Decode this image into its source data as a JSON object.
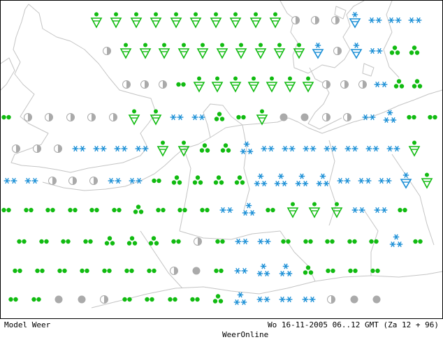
{
  "colors": {
    "coast": "#c4c4c4",
    "rain": "#11bb11",
    "snow": "#1a8fd6",
    "cloud": "#aaaaaa",
    "frame": "#000000"
  },
  "footer": {
    "model_label": "Model Weer",
    "timestamp": "Wo 16-11-2005 06..12 GMT (Za 12 + 96)",
    "brand": "WeerOnline"
  },
  "legend_types": {
    "dots2": "rain-dots-icon",
    "dots3": "rain-dots3-icon",
    "shower": "rain-shower-icon",
    "showersnow": "snow-shower-icon",
    "snow2": "snow-stars-icon",
    "snow3": "snow-stars3-icon",
    "halfcloud": "half-cloud-icon",
    "fog": "overcast-dot-icon"
  },
  "rows": [
    [
      "cloud",
      "shower",
      "shower",
      "shower",
      "shower",
      "shower",
      "shower",
      "shower",
      "shower",
      "shower",
      "shower",
      "halfcloud",
      "halfcloud",
      "halfcloud",
      "showersnow",
      "snow2",
      "snow2",
      "snow2"
    ],
    [
      "cloud",
      "halfcloud",
      "shower",
      "shower",
      "shower",
      "shower",
      "shower",
      "shower",
      "shower",
      "shower",
      "shower",
      "shower",
      "showersnow",
      "halfcloud",
      "showersnow",
      "snow2",
      "dots3",
      "dots3",
      "dots3"
    ],
    [
      "halfcloud",
      "halfcloud",
      "halfcloud",
      "dots2",
      "shower",
      "shower",
      "shower",
      "shower",
      "shower",
      "shower",
      "shower",
      "halfcloud",
      "halfcloud",
      "halfcloud",
      "snow2",
      "dots3",
      "dots3"
    ],
    [
      "dots2",
      "halfcloud",
      "halfcloud",
      "halfcloud",
      "halfcloud",
      "halfcloud",
      "shower",
      "shower",
      "snow2",
      "snow2",
      "dots3",
      "dots2",
      "shower",
      "fog",
      "fog",
      "halfcloud",
      "halfcloud",
      "snow2",
      "snow3",
      "dots2",
      "dots2"
    ],
    [
      "halfcloud",
      "halfcloud",
      "halfcloud",
      "snow2",
      "snow2",
      "snow2",
      "snow2",
      "shower",
      "shower",
      "dots3",
      "dots3",
      "snow3",
      "snow2",
      "snow2",
      "snow2",
      "snow2",
      "snow2",
      "snow2",
      "snow2",
      "shower"
    ],
    [
      "snow2",
      "snow2",
      "halfcloud",
      "halfcloud",
      "halfcloud",
      "snow2",
      "snow2",
      "dots2",
      "dots3",
      "dots3",
      "dots3",
      "dots3",
      "snow3",
      "snow3",
      "snow3",
      "snow3",
      "snow2",
      "snow2",
      "snow2",
      "showersnow",
      "shower"
    ],
    [
      "dots2",
      "dots2",
      "dots2",
      "dots2",
      "dots2",
      "dots2",
      "dots3",
      "dots2",
      "dots2",
      "dots2",
      "snow2",
      "snow3",
      "dots2",
      "shower",
      "shower",
      "shower",
      "snow2",
      "snow2",
      "dots2"
    ],
    [
      "dots2",
      "dots2",
      "dots2",
      "dots2",
      "dots3",
      "dots3",
      "dots3",
      "dots2",
      "halfcloud",
      "dots2",
      "snow2",
      "snow2",
      "dots2",
      "dots2",
      "dots2",
      "dots2",
      "dots2",
      "snow3",
      "dots2"
    ],
    [
      "dots2",
      "dots2",
      "dots2",
      "dots2",
      "dots2",
      "dots2",
      "dots2",
      "halfcloud",
      "fog",
      "dots2",
      "snow2",
      "snow3",
      "snow3",
      "dots3",
      "dots2",
      "dots2",
      "dots2"
    ],
    [
      "dots2",
      "dots2",
      "fog",
      "fog",
      "halfcloud",
      "dots2",
      "dots2",
      "dots2",
      "dots2",
      "dots3",
      "snow3",
      "snow2",
      "snow2",
      "snow2",
      "halfcloud",
      "fog",
      "fog"
    ]
  ]
}
